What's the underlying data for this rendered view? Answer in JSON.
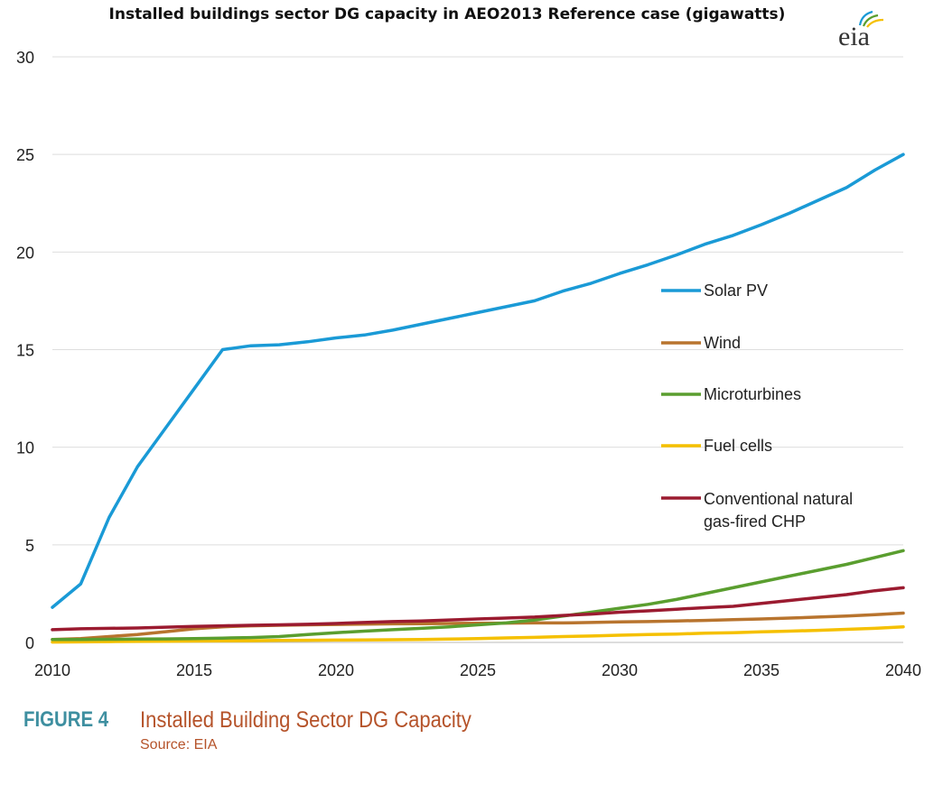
{
  "chart_data": {
    "type": "line",
    "title": "Installed buildings sector DG capacity in AEO2013 Reference case (gigawatts)",
    "xlabel": "",
    "ylabel": "",
    "xlim": [
      2010,
      2040
    ],
    "ylim": [
      0,
      30
    ],
    "x_ticks": [
      "2010",
      "2015",
      "2020",
      "2025",
      "2030",
      "2035",
      "2040"
    ],
    "y_ticks": [
      "0",
      "5",
      "10",
      "15",
      "20",
      "25",
      "30"
    ],
    "grid": true,
    "legend_position": "right",
    "x": [
      2010,
      2011,
      2012,
      2013,
      2014,
      2015,
      2016,
      2017,
      2018,
      2019,
      2020,
      2021,
      2022,
      2023,
      2024,
      2025,
      2026,
      2027,
      2028,
      2029,
      2030,
      2031,
      2032,
      2033,
      2034,
      2035,
      2036,
      2037,
      2038,
      2039,
      2040
    ],
    "series": [
      {
        "name": "Solar PV",
        "color": "#1a9ad6",
        "values": [
          1.8,
          3.0,
          6.4,
          9.0,
          11.0,
          13.0,
          15.0,
          15.2,
          15.25,
          15.4,
          15.6,
          15.75,
          16.0,
          16.3,
          16.6,
          16.9,
          17.2,
          17.5,
          18.0,
          18.4,
          18.9,
          19.35,
          19.85,
          20.4,
          20.85,
          21.4,
          22.0,
          22.65,
          23.3,
          24.2,
          25.0
        ]
      },
      {
        "name": "Wind",
        "color": "#b8742e",
        "values": [
          0.15,
          0.2,
          0.3,
          0.4,
          0.55,
          0.7,
          0.8,
          0.85,
          0.88,
          0.9,
          0.92,
          0.94,
          0.95,
          0.96,
          0.97,
          0.98,
          0.99,
          1.0,
          1.0,
          1.02,
          1.05,
          1.07,
          1.1,
          1.13,
          1.17,
          1.2,
          1.25,
          1.3,
          1.35,
          1.42,
          1.5
        ]
      },
      {
        "name": "Microturbines",
        "color": "#5a9e2f",
        "values": [
          0.15,
          0.15,
          0.16,
          0.17,
          0.18,
          0.2,
          0.22,
          0.25,
          0.3,
          0.4,
          0.5,
          0.58,
          0.65,
          0.72,
          0.8,
          0.9,
          1.0,
          1.15,
          1.35,
          1.55,
          1.75,
          1.95,
          2.2,
          2.5,
          2.8,
          3.1,
          3.4,
          3.7,
          4.0,
          4.35,
          4.7
        ]
      },
      {
        "name": "Fuel cells",
        "color": "#f5c000",
        "values": [
          0.02,
          0.03,
          0.04,
          0.05,
          0.06,
          0.07,
          0.08,
          0.09,
          0.1,
          0.11,
          0.12,
          0.13,
          0.14,
          0.15,
          0.17,
          0.2,
          0.23,
          0.26,
          0.3,
          0.33,
          0.37,
          0.4,
          0.43,
          0.47,
          0.5,
          0.54,
          0.58,
          0.62,
          0.67,
          0.72,
          0.8
        ]
      },
      {
        "name": "Conventional natural gas-fired CHP",
        "color": "#9b1b30",
        "values": [
          0.65,
          0.7,
          0.72,
          0.74,
          0.78,
          0.82,
          0.85,
          0.88,
          0.9,
          0.93,
          0.97,
          1.02,
          1.07,
          1.1,
          1.15,
          1.2,
          1.25,
          1.3,
          1.38,
          1.45,
          1.55,
          1.62,
          1.7,
          1.78,
          1.85,
          2.0,
          2.15,
          2.3,
          2.45,
          2.65,
          2.8
        ]
      }
    ],
    "legend_labels": {
      "solar_pv": "Solar PV",
      "wind": "Wind",
      "microturbines": "Microturbines",
      "fuel_cells": "Fuel cells",
      "chp_line1": "Conventional natural",
      "chp_line2": "gas-fired CHP"
    }
  },
  "logo": {
    "text": "eia"
  },
  "caption": {
    "label": "FIGURE 4",
    "title": "Installed Building Sector DG Capacity",
    "source": "Source: EIA"
  }
}
